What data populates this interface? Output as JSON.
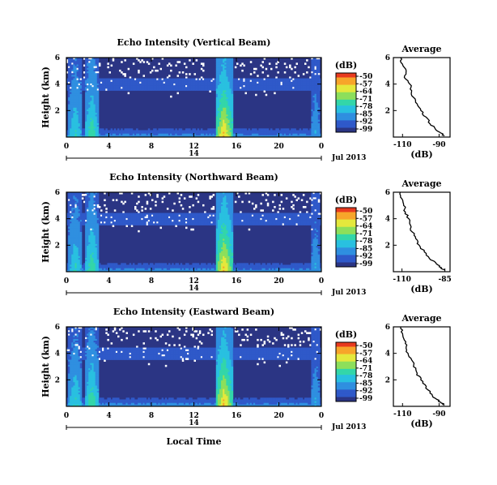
{
  "figure": {
    "date_label": "Jul 2013",
    "day_label": "14",
    "bottom_xlabel": "Local Time"
  },
  "colorbar": {
    "unit_label": "(dB)",
    "ticks": [
      "-50",
      "-57",
      "-64",
      "-71",
      "-78",
      "-85",
      "-92",
      "-99"
    ],
    "colors": [
      "#2b3584",
      "#2f59c9",
      "#2f8fe0",
      "#29c0e0",
      "#33d6a9",
      "#8ddf5b",
      "#e4e83c",
      "#f7a52a",
      "#e83a1f"
    ]
  },
  "chart_data": [
    {
      "type": "heatmap",
      "title": "Echo Intensity (Vertical Beam)",
      "ylabel": "Height (km)",
      "x_ticks": [
        "0",
        "4",
        "8",
        "12",
        "16",
        "20",
        "0"
      ],
      "y_ticks": [
        "6",
        "4",
        "2"
      ],
      "x_range_hours": [
        0,
        24
      ],
      "y_range_km": [
        0,
        6
      ],
      "value_range_db": [
        -99,
        -50
      ],
      "features": [
        {
          "start_h": 0.2,
          "end_h": 1.5,
          "level": 0.45
        },
        {
          "start_h": 1.8,
          "end_h": 3.0,
          "level": 0.55
        },
        {
          "start_h": 14.1,
          "end_h": 15.6,
          "level": 0.85
        },
        {
          "start_h": 23.0,
          "end_h": 23.9,
          "level": 0.3
        }
      ]
    },
    {
      "type": "line",
      "title": "Average",
      "xlabel": "(dB)",
      "x_ticks": [
        "-110",
        "-90"
      ],
      "y_ticks": [
        "6",
        "4",
        "2"
      ],
      "xlim": [
        -115,
        -84
      ],
      "ylim": [
        0,
        6
      ],
      "x": [
        -111,
        -110,
        -108,
        -109,
        -106,
        -105,
        -104,
        -102,
        -100,
        -97,
        -95,
        -92,
        -89,
        -87
      ],
      "y": [
        6.0,
        5.5,
        5.0,
        4.5,
        4.0,
        3.5,
        3.0,
        2.5,
        2.0,
        1.5,
        1.0,
        0.6,
        0.3,
        0.1
      ]
    },
    {
      "type": "heatmap",
      "title": "Echo Intensity (Northward Beam)",
      "ylabel": "Height (km)",
      "x_ticks": [
        "0",
        "4",
        "8",
        "12",
        "16",
        "20",
        "0"
      ],
      "y_ticks": [
        "6",
        "4",
        "2"
      ],
      "x_range_hours": [
        0,
        24
      ],
      "y_range_km": [
        0,
        6
      ],
      "value_range_db": [
        -99,
        -50
      ],
      "features": [
        {
          "start_h": 0.2,
          "end_h": 1.5,
          "level": 0.45
        },
        {
          "start_h": 1.8,
          "end_h": 3.0,
          "level": 0.55
        },
        {
          "start_h": 14.1,
          "end_h": 15.6,
          "level": 0.85
        },
        {
          "start_h": 23.0,
          "end_h": 23.9,
          "level": 0.3
        }
      ]
    },
    {
      "type": "line",
      "title": "Average",
      "xlabel": "(dB)",
      "x_ticks": [
        "-110",
        "-85"
      ],
      "y_ticks": [
        "6",
        "4",
        "2"
      ],
      "xlim": [
        -115,
        -82
      ],
      "ylim": [
        0,
        6
      ],
      "x": [
        -111,
        -110,
        -109,
        -108,
        -106,
        -105,
        -104,
        -102,
        -100,
        -97,
        -94,
        -90,
        -87,
        -85
      ],
      "y": [
        6.0,
        5.5,
        5.0,
        4.5,
        4.0,
        3.5,
        3.0,
        2.5,
        2.0,
        1.5,
        1.0,
        0.6,
        0.3,
        0.1
      ]
    },
    {
      "type": "heatmap",
      "title": "Echo Intensity (Eastward Beam)",
      "ylabel": "Height (km)",
      "x_ticks": [
        "0",
        "4",
        "8",
        "12",
        "16",
        "20",
        "0"
      ],
      "y_ticks": [
        "6",
        "4",
        "2"
      ],
      "x_range_hours": [
        0,
        24
      ],
      "y_range_km": [
        0,
        6
      ],
      "value_range_db": [
        -99,
        -50
      ],
      "features": [
        {
          "start_h": 0.2,
          "end_h": 1.5,
          "level": 0.45
        },
        {
          "start_h": 1.8,
          "end_h": 3.0,
          "level": 0.55
        },
        {
          "start_h": 14.1,
          "end_h": 15.6,
          "level": 0.85
        },
        {
          "start_h": 23.0,
          "end_h": 23.9,
          "level": 0.3
        }
      ]
    },
    {
      "type": "line",
      "title": "Average",
      "xlabel": "(dB)",
      "x_ticks": [
        "-110",
        "-90"
      ],
      "y_ticks": [
        "6",
        "4",
        "2"
      ],
      "xlim": [
        -115,
        -84
      ],
      "ylim": [
        0,
        6
      ],
      "x": [
        -111,
        -110,
        -109,
        -108,
        -107,
        -105,
        -104,
        -102,
        -100,
        -97,
        -95,
        -92,
        -89,
        -87
      ],
      "y": [
        6.0,
        5.5,
        5.0,
        4.5,
        4.0,
        3.5,
        3.0,
        2.5,
        2.0,
        1.5,
        1.0,
        0.6,
        0.3,
        0.1
      ]
    }
  ]
}
